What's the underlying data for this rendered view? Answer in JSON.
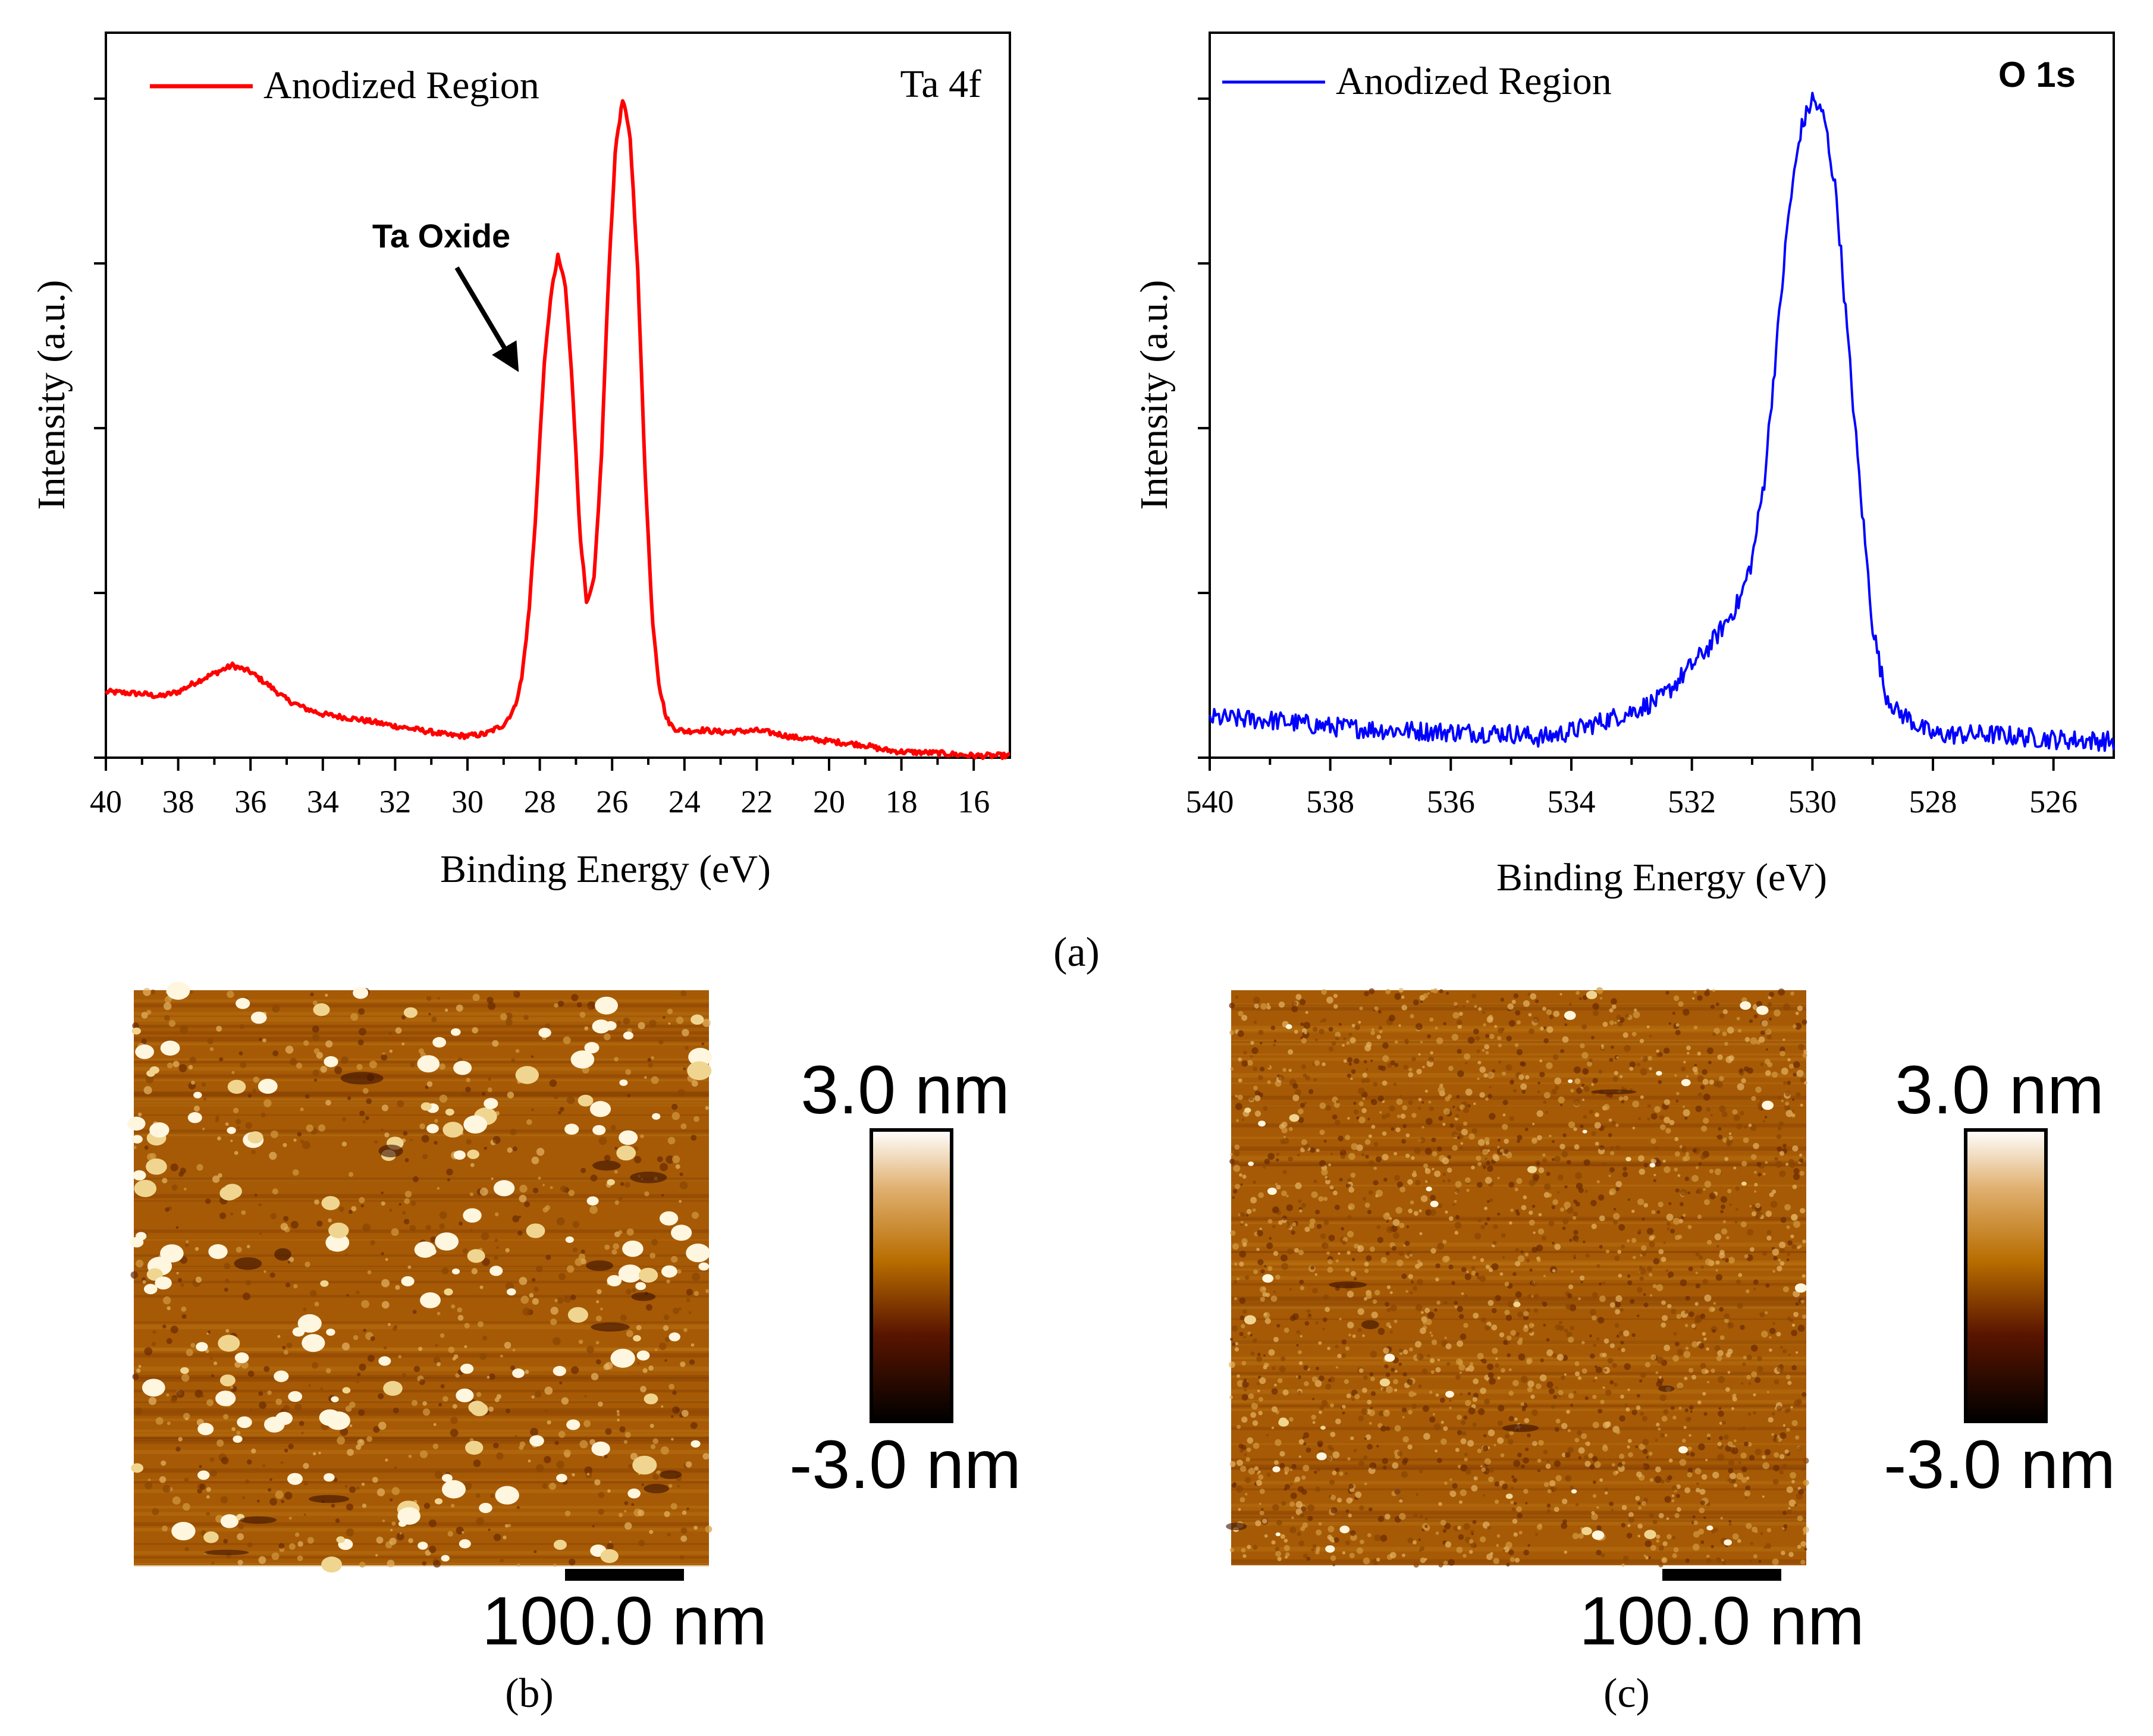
{
  "figure": {
    "panel_a_label": "(a)",
    "panel_b_label": "(b)",
    "panel_c_label": "(c)"
  },
  "chart_data": [
    {
      "type": "line",
      "title": "Ta 4f",
      "xlabel": "Binding Energy (eV)",
      "ylabel": "Intensity (a.u.)",
      "xlim": [
        40,
        15
      ],
      "ylim": [
        0,
        1.1
      ],
      "x_ticks": [
        40,
        38,
        36,
        34,
        32,
        30,
        28,
        26,
        24,
        22,
        20,
        18,
        16
      ],
      "x_tick_labels": [
        "40",
        "38",
        "36",
        "34",
        "32",
        "30",
        "28",
        "26",
        "24",
        "22",
        "20",
        "18",
        "16"
      ],
      "y_tick_labels_shown": false,
      "legend": "top-left",
      "annotation": "Ta Oxide",
      "color": "#ff0000",
      "series": [
        {
          "name": "Anodized Region",
          "x": [
            40,
            39,
            38.5,
            38,
            37.5,
            37,
            36.5,
            36,
            35.5,
            35,
            34.5,
            34,
            33,
            32,
            31,
            30.5,
            30,
            29.5,
            29,
            28.7,
            28.5,
            28.3,
            28.1,
            27.9,
            27.7,
            27.5,
            27.3,
            27.1,
            26.9,
            26.7,
            26.5,
            26.3,
            26.1,
            25.9,
            25.7,
            25.5,
            25.3,
            25.1,
            24.9,
            24.7,
            24.5,
            24.3,
            24.0,
            23.5,
            23,
            22.5,
            22,
            21.5,
            21,
            20,
            19,
            18.5,
            18,
            17,
            16,
            15
          ],
          "values": [
            0.1,
            0.097,
            0.093,
            0.1,
            0.115,
            0.128,
            0.14,
            0.13,
            0.11,
            0.088,
            0.075,
            0.066,
            0.058,
            0.048,
            0.039,
            0.034,
            0.033,
            0.036,
            0.05,
            0.075,
            0.12,
            0.22,
            0.38,
            0.58,
            0.7,
            0.76,
            0.72,
            0.57,
            0.35,
            0.23,
            0.27,
            0.45,
            0.73,
            0.93,
            1.0,
            0.94,
            0.75,
            0.45,
            0.22,
            0.11,
            0.06,
            0.045,
            0.04,
            0.042,
            0.039,
            0.04,
            0.041,
            0.037,
            0.031,
            0.025,
            0.019,
            0.012,
            0.009,
            0.007,
            0.003,
            0.003
          ]
        }
      ]
    },
    {
      "type": "line",
      "title": "O 1s",
      "xlabel": "Binding Energy (eV)",
      "ylabel": "Intensity (a.u.)",
      "xlim": [
        540,
        525
      ],
      "ylim": [
        0,
        1.1
      ],
      "x_ticks": [
        540,
        538,
        536,
        534,
        532,
        530,
        528,
        526
      ],
      "x_tick_labels": [
        "540",
        "538",
        "536",
        "534",
        "532",
        "530",
        "528",
        "526"
      ],
      "y_tick_labels_shown": false,
      "legend": "top-left",
      "color": "#0000ff",
      "series": [
        {
          "name": "Anodized Region",
          "x": [
            540,
            539,
            538,
            537,
            536,
            535,
            534.5,
            534,
            533.5,
            533,
            532.5,
            532,
            531.7,
            531.4,
            531.2,
            531.0,
            530.8,
            530.6,
            530.4,
            530.2,
            530.0,
            529.8,
            529.6,
            529.4,
            529.2,
            529.0,
            528.8,
            528.6,
            528.4,
            528.2,
            528,
            527,
            526,
            525
          ],
          "values": [
            0.06,
            0.057,
            0.047,
            0.042,
            0.039,
            0.037,
            0.03,
            0.04,
            0.055,
            0.07,
            0.09,
            0.14,
            0.17,
            0.21,
            0.24,
            0.3,
            0.42,
            0.62,
            0.82,
            0.95,
            1.0,
            0.97,
            0.85,
            0.62,
            0.4,
            0.2,
            0.1,
            0.07,
            0.06,
            0.045,
            0.035,
            0.035,
            0.028,
            0.025
          ]
        }
      ]
    },
    {
      "type": "heatmap",
      "subtype": "afm-image",
      "panel": "b",
      "colorbar_max_label": "3.0 nm",
      "colorbar_min_label": "-3.0 nm",
      "colorbar_range": [
        -3.0,
        3.0
      ],
      "scale_bar_label": "100.0 nm",
      "colormap": [
        "#000000",
        "#5a1500",
        "#b86d00",
        "#e0b070",
        "#ffffff"
      ]
    },
    {
      "type": "heatmap",
      "subtype": "afm-image",
      "panel": "c",
      "colorbar_max_label": "3.0 nm",
      "colorbar_min_label": "-3.0 nm",
      "colorbar_range": [
        -3.0,
        3.0
      ],
      "scale_bar_label": "100.0 nm",
      "colormap": [
        "#000000",
        "#5a1500",
        "#b86d00",
        "#e0b070",
        "#ffffff"
      ]
    }
  ]
}
